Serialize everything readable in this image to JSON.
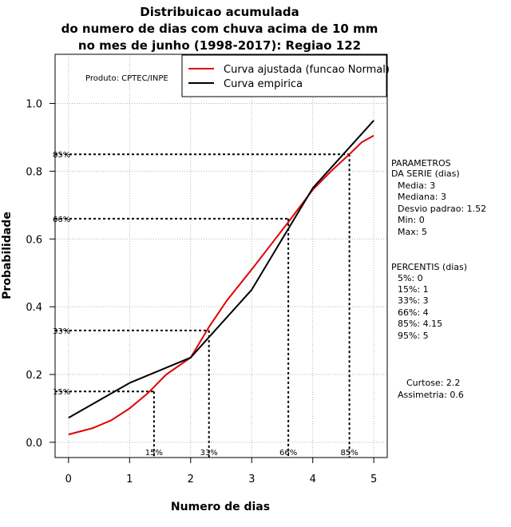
{
  "chart_data": {
    "type": "line",
    "title_lines": [
      "Distribuicao acumulada",
      "do numero de dias com chuva acima de 10 mm",
      "no mes de junho (1998-2017): Regiao 122"
    ],
    "xlabel": "Numero de dias",
    "ylabel": "Probabilidade",
    "xlim": [
      -0.22,
      5.22
    ],
    "ylim": [
      -0.045,
      1.145
    ],
    "x_ticks": [
      0,
      1,
      2,
      3,
      4,
      5
    ],
    "y_ticks": [
      0.0,
      0.2,
      0.4,
      0.6,
      0.8,
      1.0
    ],
    "x_tick_labels": [
      "0",
      "1",
      "2",
      "3",
      "4",
      "5"
    ],
    "y_tick_labels": [
      "0.0",
      "0.2",
      "0.4",
      "0.6",
      "0.8",
      "1.0"
    ],
    "grid": true,
    "producer_label": "Produto: CPTEC/INPE",
    "legend": [
      {
        "label": "Curva ajustada (funcao Normal)",
        "color": "#e00000"
      },
      {
        "label": "Curva empirica",
        "color": "#000000"
      }
    ],
    "series": [
      {
        "name": "Curva ajustada (funcao Normal)",
        "color": "#e00000",
        "x": [
          0,
          0.4,
          0.7,
          1.0,
          1.3,
          1.6,
          2.0,
          2.3,
          2.6,
          3.0,
          3.3,
          3.6,
          4.0,
          4.3,
          4.6,
          4.8,
          5.0
        ],
        "y": [
          0.023,
          0.042,
          0.065,
          0.1,
          0.145,
          0.2,
          0.25,
          0.34,
          0.42,
          0.51,
          0.58,
          0.65,
          0.745,
          0.8,
          0.85,
          0.885,
          0.905
        ]
      },
      {
        "name": "Curva empirica",
        "color": "#000000",
        "x": [
          0,
          1,
          2,
          3,
          4,
          5
        ],
        "y": [
          0.072,
          0.175,
          0.25,
          0.45,
          0.75,
          0.95
        ]
      }
    ],
    "percentile_markers": [
      {
        "label": "15%",
        "p": 0.15,
        "x": 1.4
      },
      {
        "label": "33%",
        "p": 0.33,
        "x": 2.3
      },
      {
        "label": "66%",
        "p": 0.66,
        "x": 3.6
      },
      {
        "label": "85%",
        "p": 0.85,
        "x": 4.6
      }
    ],
    "stats": {
      "parametros_title": [
        "PARAMETROS",
        "DA SERIE (dias)"
      ],
      "parametros": [
        "Media: 3",
        "Mediana: 3",
        "Desvio padrao: 1.52",
        "Min: 0",
        "Max: 5"
      ],
      "percentis_title": "PERCENTIS (dias)",
      "percentis": [
        "5%: 0",
        "15%: 1",
        "33%: 3",
        "66%: 4",
        "85%: 4.15",
        "95%: 5"
      ],
      "curtose": "Curtose: 2.2",
      "assimetria": "Assimetria: 0.6"
    }
  }
}
